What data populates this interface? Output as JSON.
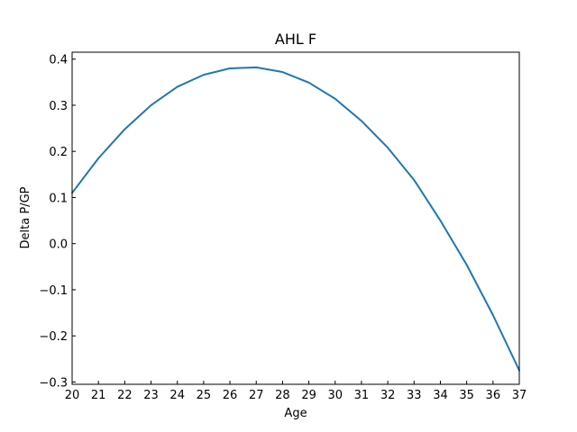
{
  "chart_data": {
    "type": "line",
    "title": "AHL F",
    "xlabel": "Age",
    "ylabel": "Delta P/GP",
    "xlim": [
      20,
      37
    ],
    "ylim": [
      -0.305,
      0.415
    ],
    "x_ticks": [
      20,
      21,
      22,
      23,
      24,
      25,
      26,
      27,
      28,
      29,
      30,
      31,
      32,
      33,
      34,
      35,
      36,
      37
    ],
    "y_ticks": [
      -0.3,
      -0.2,
      -0.1,
      0.0,
      0.1,
      0.2,
      0.3,
      0.4
    ],
    "y_tick_labels": [
      "−0.3",
      "−0.2",
      "−0.1",
      "0.0",
      "0.1",
      "0.2",
      "0.3",
      "0.4"
    ],
    "grid": false,
    "series": [
      {
        "color": "#1f77b4",
        "x": [
          20,
          21,
          22,
          23,
          24,
          25,
          26,
          27,
          28,
          29,
          30,
          31,
          32,
          33,
          34,
          35,
          36,
          37
        ],
        "y": [
          0.11,
          0.185,
          0.248,
          0.3,
          0.34,
          0.366,
          0.38,
          0.382,
          0.372,
          0.349,
          0.314,
          0.266,
          0.208,
          0.138,
          0.05,
          -0.046,
          -0.155,
          -0.275
        ]
      }
    ]
  }
}
